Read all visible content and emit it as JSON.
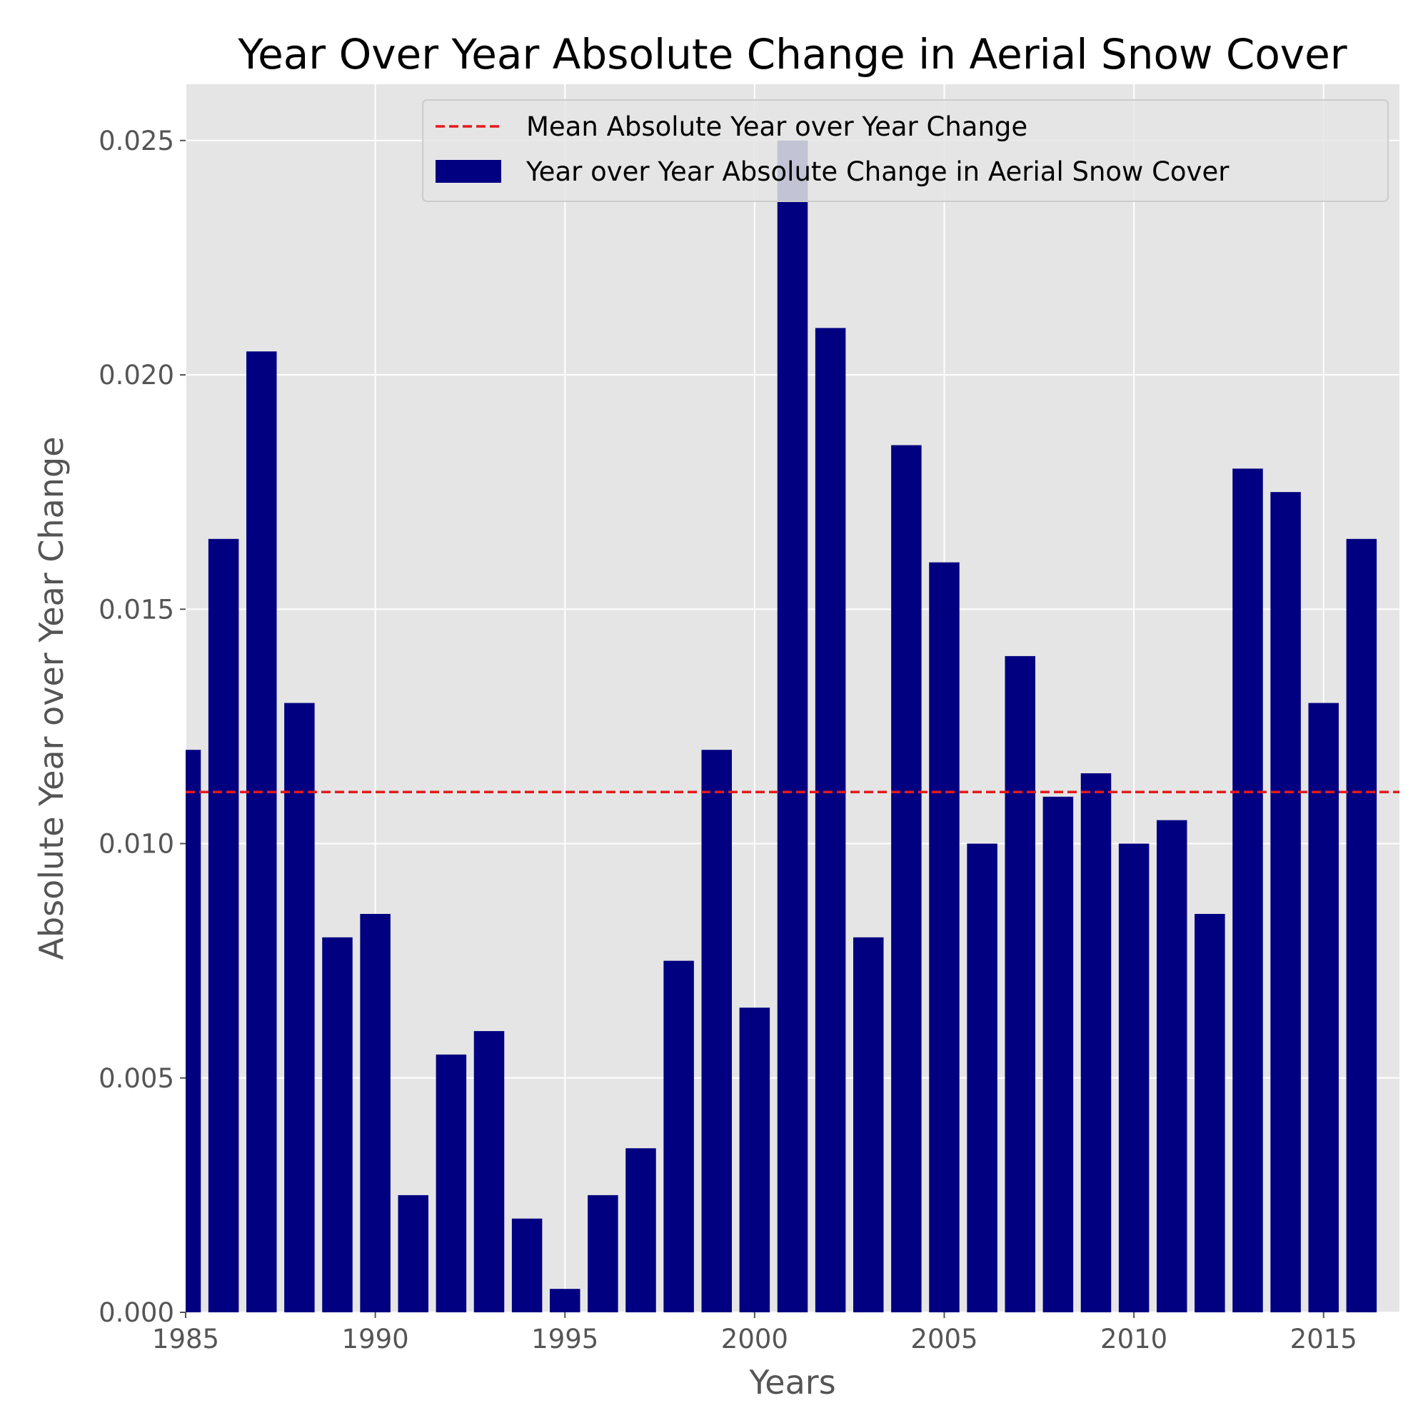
{
  "chart_data": {
    "type": "bar",
    "title": "Year Over Year Absolute Change in Aerial Snow Cover",
    "xlabel": "Years",
    "ylabel": "Absolute Year over Year Change",
    "x": [
      1985,
      1986,
      1987,
      1988,
      1989,
      1990,
      1991,
      1992,
      1993,
      1994,
      1995,
      1996,
      1997,
      1998,
      1999,
      2000,
      2001,
      2002,
      2003,
      2004,
      2005,
      2006,
      2007,
      2008,
      2009,
      2010,
      2011,
      2012,
      2013,
      2014,
      2015,
      2016
    ],
    "values": [
      0.012,
      0.0165,
      0.0205,
      0.013,
      0.008,
      0.0085,
      0.0025,
      0.0055,
      0.006,
      0.002,
      0.0005,
      0.0025,
      0.0035,
      0.0075,
      0.012,
      0.0065,
      0.025,
      0.021,
      0.008,
      0.0185,
      0.016,
      0.01,
      0.014,
      0.011,
      0.0115,
      0.01,
      0.0105,
      0.0085,
      0.018,
      0.0175,
      0.013,
      0.0165
    ],
    "mean_line": 0.0111,
    "xlim": [
      1985,
      2017
    ],
    "ylim": [
      0,
      0.0262
    ],
    "xticks": [
      "1985",
      "1990",
      "1995",
      "2000",
      "2005",
      "2010",
      "2015"
    ],
    "yticks": [
      "0.000",
      "0.005",
      "0.010",
      "0.015",
      "0.020",
      "0.025"
    ],
    "grid": true,
    "legend_position": "top-right",
    "legend": {
      "line_label": "Mean Absolute Year over Year Change",
      "bar_label": "Year over Year Absolute Change in Aerial Snow Cover"
    },
    "colors": {
      "bar": "#000080",
      "mean_line": "#e41a1c",
      "plot_background": "#e5e5e5",
      "grid": "#ffffff"
    }
  }
}
